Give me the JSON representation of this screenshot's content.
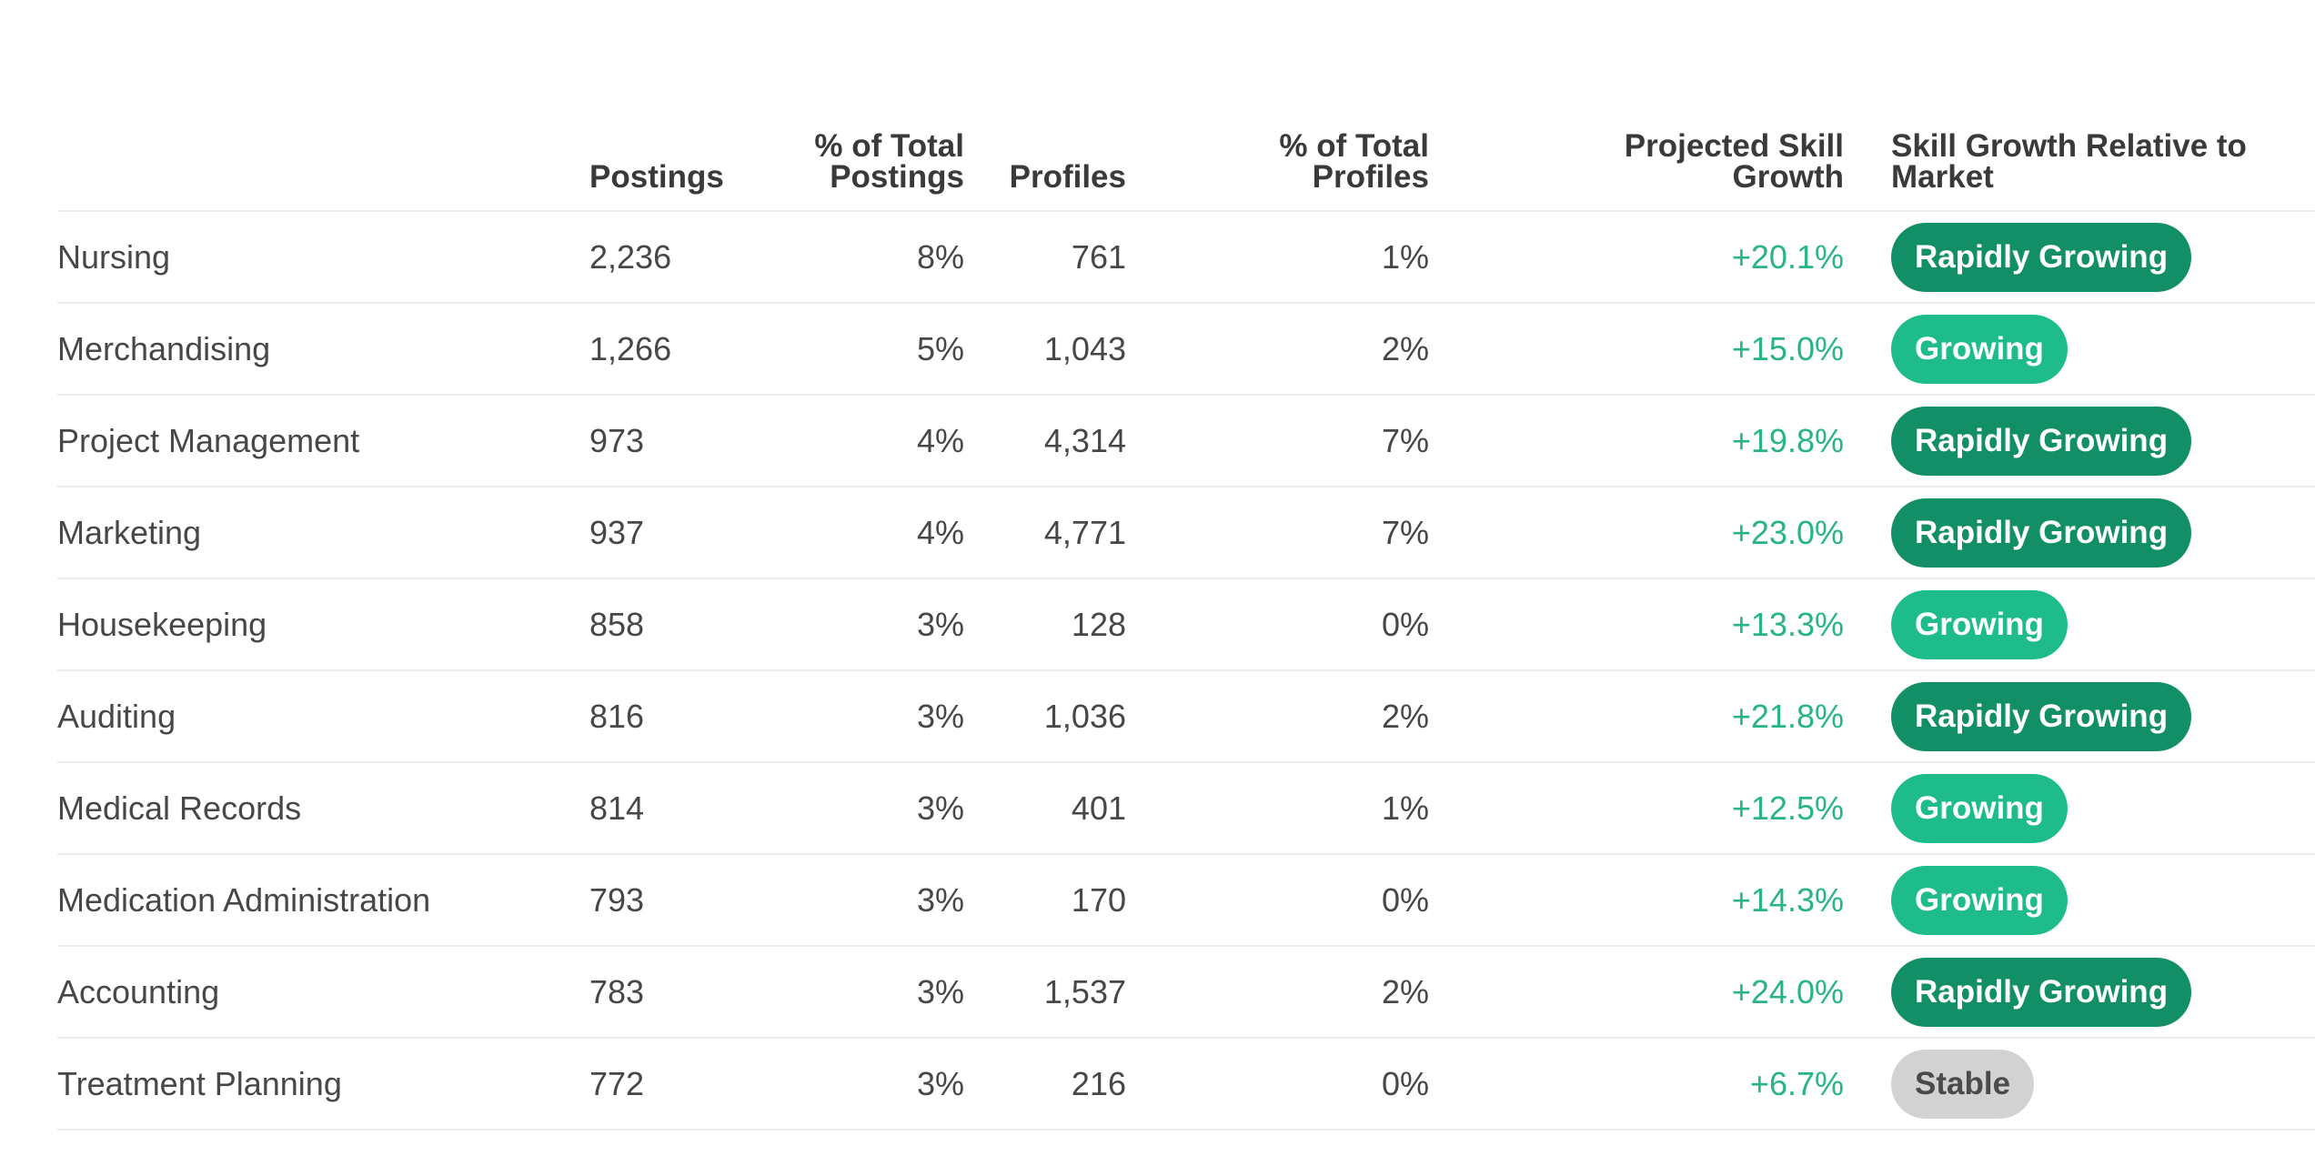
{
  "table": {
    "headers": {
      "skill": "",
      "postings": "Postings",
      "pct_postings": "% of Total Postings",
      "profiles": "Profiles",
      "pct_profiles": "% of Total Profiles",
      "growth": "Projected Skill Growth",
      "relative": "Skill Growth Relative to Market"
    },
    "rows": [
      {
        "skill": "Nursing",
        "postings": "2,236",
        "pct_postings": "8%",
        "profiles": "761",
        "pct_profiles": "1%",
        "growth": "+20.1%",
        "badge": "Rapidly Growing",
        "badge_level": "rapid"
      },
      {
        "skill": "Merchandising",
        "postings": "1,266",
        "pct_postings": "5%",
        "profiles": "1,043",
        "pct_profiles": "2%",
        "growth": "+15.0%",
        "badge": "Growing",
        "badge_level": "growing"
      },
      {
        "skill": "Project Management",
        "postings": "973",
        "pct_postings": "4%",
        "profiles": "4,314",
        "pct_profiles": "7%",
        "growth": "+19.8%",
        "badge": "Rapidly Growing",
        "badge_level": "rapid"
      },
      {
        "skill": "Marketing",
        "postings": "937",
        "pct_postings": "4%",
        "profiles": "4,771",
        "pct_profiles": "7%",
        "growth": "+23.0%",
        "badge": "Rapidly Growing",
        "badge_level": "rapid"
      },
      {
        "skill": "Housekeeping",
        "postings": "858",
        "pct_postings": "3%",
        "profiles": "128",
        "pct_profiles": "0%",
        "growth": "+13.3%",
        "badge": "Growing",
        "badge_level": "growing"
      },
      {
        "skill": "Auditing",
        "postings": "816",
        "pct_postings": "3%",
        "profiles": "1,036",
        "pct_profiles": "2%",
        "growth": "+21.8%",
        "badge": "Rapidly Growing",
        "badge_level": "rapid"
      },
      {
        "skill": "Medical Records",
        "postings": "814",
        "pct_postings": "3%",
        "profiles": "401",
        "pct_profiles": "1%",
        "growth": "+12.5%",
        "badge": "Growing",
        "badge_level": "growing"
      },
      {
        "skill": "Medication Administration",
        "postings": "793",
        "pct_postings": "3%",
        "profiles": "170",
        "pct_profiles": "0%",
        "growth": "+14.3%",
        "badge": "Growing",
        "badge_level": "growing"
      },
      {
        "skill": "Accounting",
        "postings": "783",
        "pct_postings": "3%",
        "profiles": "1,537",
        "pct_profiles": "2%",
        "growth": "+24.0%",
        "badge": "Rapidly Growing",
        "badge_level": "rapid"
      },
      {
        "skill": "Treatment Planning",
        "postings": "772",
        "pct_postings": "3%",
        "profiles": "216",
        "pct_profiles": "0%",
        "growth": "+6.7%",
        "badge": "Stable",
        "badge_level": "stable"
      }
    ]
  },
  "colors": {
    "growth_text": "#27b487",
    "badge_rapidly_growing": "#138f67",
    "badge_growing": "#1ebc8b",
    "badge_stable": "#d2d2d2",
    "row_divider": "#ececec"
  }
}
